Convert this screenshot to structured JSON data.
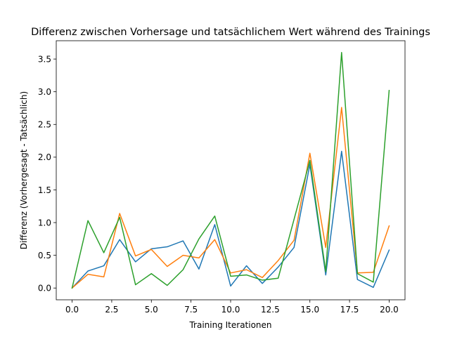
{
  "chart_data": {
    "type": "line",
    "title": "Differenz zwischen Vorhersage und tatsächlichem Wert während des Trainings",
    "xlabel": "Training Iterationen",
    "ylabel": "Differenz (Vorhergesagt - Tatsächlich)",
    "xlim": [
      -1.0,
      21.0
    ],
    "ylim": [
      -0.18,
      3.78
    ],
    "xticks": [
      0.0,
      2.5,
      5.0,
      7.5,
      10.0,
      12.5,
      15.0,
      17.5,
      20.0
    ],
    "xtick_labels": [
      "0.0",
      "2.5",
      "5.0",
      "7.5",
      "10.0",
      "12.5",
      "15.0",
      "17.5",
      "20.0"
    ],
    "yticks": [
      0.0,
      0.5,
      1.0,
      1.5,
      2.0,
      2.5,
      3.0,
      3.5
    ],
    "ytick_labels": [
      "0.0",
      "0.5",
      "1.0",
      "1.5",
      "2.0",
      "2.5",
      "3.0",
      "3.5"
    ],
    "grid": false,
    "x": [
      0,
      1,
      2,
      3,
      4,
      5,
      6,
      7,
      8,
      9,
      10,
      11,
      12,
      13,
      14,
      15,
      16,
      17,
      18,
      19,
      20
    ],
    "series": [
      {
        "color": "#1f77b4",
        "values": [
          0.0,
          0.26,
          0.34,
          0.74,
          0.4,
          0.6,
          0.63,
          0.72,
          0.29,
          0.97,
          0.03,
          0.34,
          0.07,
          0.32,
          0.62,
          1.89,
          0.2,
          2.09,
          0.13,
          0.01,
          0.58
        ]
      },
      {
        "color": "#ff7f0e",
        "values": [
          0.0,
          0.21,
          0.17,
          1.14,
          0.49,
          0.59,
          0.33,
          0.5,
          0.46,
          0.74,
          0.23,
          0.28,
          0.16,
          0.42,
          0.73,
          2.06,
          0.62,
          2.76,
          0.23,
          0.24,
          0.95
        ]
      },
      {
        "color": "#2ca02c",
        "values": [
          0.0,
          1.03,
          0.54,
          1.08,
          0.05,
          0.22,
          0.04,
          0.28,
          0.75,
          1.1,
          0.18,
          0.2,
          0.12,
          0.15,
          1.05,
          1.95,
          0.25,
          3.6,
          0.22,
          0.09,
          3.02
        ]
      }
    ]
  }
}
